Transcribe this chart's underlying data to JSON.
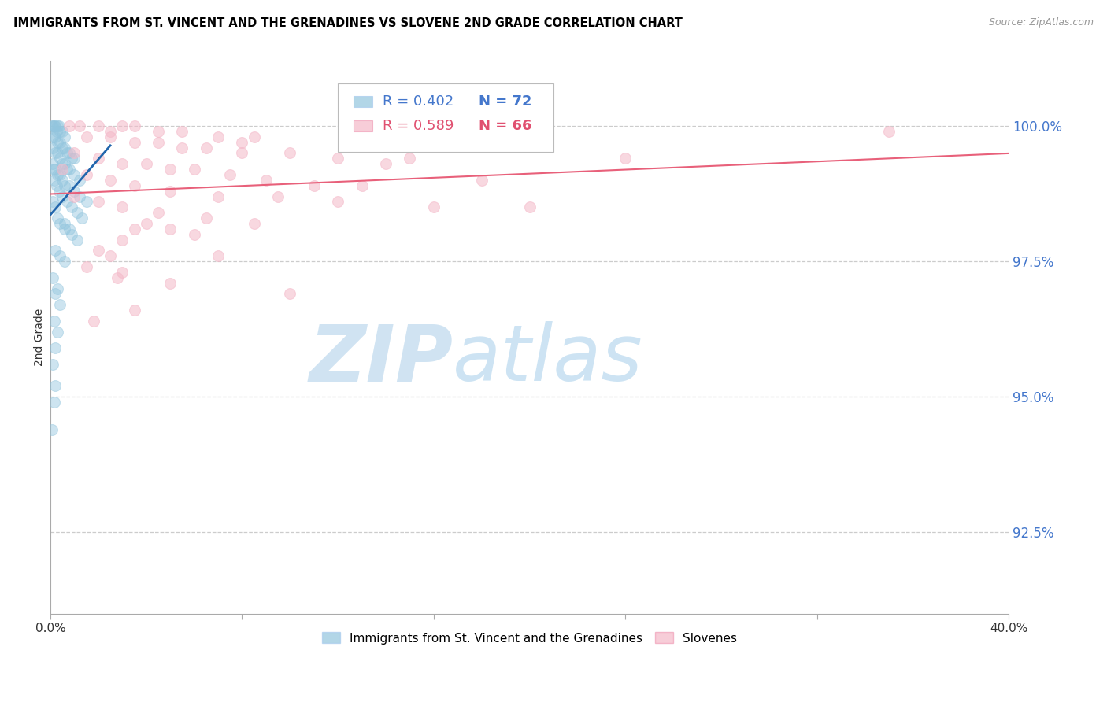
{
  "title": "IMMIGRANTS FROM ST. VINCENT AND THE GRENADINES VS SLOVENE 2ND GRADE CORRELATION CHART",
  "source": "Source: ZipAtlas.com",
  "ylabel": "2nd Grade",
  "legend_blue_R": "R = 0.402",
  "legend_blue_N": "N = 72",
  "legend_pink_R": "R = 0.589",
  "legend_pink_N": "N = 66",
  "legend_label_blue": "Immigrants from St. Vincent and the Grenadines",
  "legend_label_pink": "Slovenes",
  "blue_color": "#92c5de",
  "pink_color": "#f4b8c8",
  "blue_line_color": "#2166ac",
  "pink_line_color": "#e8607a",
  "xlim": [
    0.0,
    40.0
  ],
  "ylim": [
    91.0,
    101.2
  ],
  "right_yticks": [
    92.5,
    95.0,
    97.5,
    100.0
  ],
  "xpercent_ticks": [
    0.0,
    8.0,
    16.0,
    24.0,
    32.0,
    40.0
  ],
  "blue_dots": [
    [
      0.05,
      100.0
    ],
    [
      0.1,
      100.0
    ],
    [
      0.15,
      100.0
    ],
    [
      0.2,
      100.0
    ],
    [
      0.25,
      99.9
    ],
    [
      0.3,
      100.0
    ],
    [
      0.35,
      100.0
    ],
    [
      0.4,
      99.9
    ],
    [
      0.5,
      99.9
    ],
    [
      0.6,
      99.8
    ],
    [
      0.1,
      99.8
    ],
    [
      0.2,
      99.8
    ],
    [
      0.3,
      99.7
    ],
    [
      0.4,
      99.7
    ],
    [
      0.5,
      99.6
    ],
    [
      0.6,
      99.6
    ],
    [
      0.7,
      99.5
    ],
    [
      0.8,
      99.5
    ],
    [
      0.9,
      99.4
    ],
    [
      1.0,
      99.4
    ],
    [
      0.1,
      99.6
    ],
    [
      0.2,
      99.5
    ],
    [
      0.3,
      99.5
    ],
    [
      0.4,
      99.4
    ],
    [
      0.5,
      99.3
    ],
    [
      0.6,
      99.3
    ],
    [
      0.7,
      99.2
    ],
    [
      0.8,
      99.2
    ],
    [
      1.0,
      99.1
    ],
    [
      1.2,
      99.0
    ],
    [
      0.1,
      99.3
    ],
    [
      0.2,
      99.2
    ],
    [
      0.3,
      99.1
    ],
    [
      0.4,
      99.1
    ],
    [
      0.5,
      99.0
    ],
    [
      0.6,
      98.9
    ],
    [
      0.8,
      98.9
    ],
    [
      1.0,
      98.8
    ],
    [
      1.2,
      98.7
    ],
    [
      1.5,
      98.6
    ],
    [
      0.15,
      99.0
    ],
    [
      0.25,
      98.9
    ],
    [
      0.35,
      98.8
    ],
    [
      0.5,
      98.7
    ],
    [
      0.7,
      98.6
    ],
    [
      0.9,
      98.5
    ],
    [
      1.1,
      98.4
    ],
    [
      1.3,
      98.3
    ],
    [
      0.6,
      98.2
    ],
    [
      0.8,
      98.1
    ],
    [
      0.1,
      98.6
    ],
    [
      0.2,
      98.5
    ],
    [
      0.3,
      98.3
    ],
    [
      0.4,
      98.2
    ],
    [
      0.6,
      98.1
    ],
    [
      0.9,
      98.0
    ],
    [
      1.1,
      97.9
    ],
    [
      0.2,
      97.7
    ],
    [
      0.4,
      97.6
    ],
    [
      0.6,
      97.5
    ],
    [
      0.1,
      97.2
    ],
    [
      0.3,
      97.0
    ],
    [
      0.2,
      96.9
    ],
    [
      0.4,
      96.7
    ],
    [
      0.15,
      96.4
    ],
    [
      0.3,
      96.2
    ],
    [
      0.2,
      95.9
    ],
    [
      0.1,
      95.6
    ],
    [
      0.2,
      95.2
    ],
    [
      0.15,
      94.9
    ],
    [
      0.08,
      94.4
    ],
    [
      0.12,
      99.2
    ]
  ],
  "pink_dots": [
    [
      0.8,
      100.0
    ],
    [
      1.2,
      100.0
    ],
    [
      2.0,
      100.0
    ],
    [
      2.5,
      99.9
    ],
    [
      3.0,
      100.0
    ],
    [
      3.5,
      100.0
    ],
    [
      4.5,
      99.9
    ],
    [
      5.5,
      99.9
    ],
    [
      7.0,
      99.8
    ],
    [
      8.5,
      99.8
    ],
    [
      1.5,
      99.8
    ],
    [
      2.5,
      99.8
    ],
    [
      3.5,
      99.7
    ],
    [
      4.5,
      99.7
    ],
    [
      5.5,
      99.6
    ],
    [
      6.5,
      99.6
    ],
    [
      8.0,
      99.5
    ],
    [
      10.0,
      99.5
    ],
    [
      12.0,
      99.4
    ],
    [
      15.0,
      99.4
    ],
    [
      1.0,
      99.5
    ],
    [
      2.0,
      99.4
    ],
    [
      3.0,
      99.3
    ],
    [
      4.0,
      99.3
    ],
    [
      5.0,
      99.2
    ],
    [
      6.0,
      99.2
    ],
    [
      7.5,
      99.1
    ],
    [
      9.0,
      99.0
    ],
    [
      11.0,
      98.9
    ],
    [
      13.0,
      98.9
    ],
    [
      0.5,
      99.2
    ],
    [
      1.5,
      99.1
    ],
    [
      2.5,
      99.0
    ],
    [
      3.5,
      98.9
    ],
    [
      5.0,
      98.8
    ],
    [
      7.0,
      98.7
    ],
    [
      9.5,
      98.7
    ],
    [
      12.0,
      98.6
    ],
    [
      16.0,
      98.5
    ],
    [
      20.0,
      98.5
    ],
    [
      1.0,
      98.7
    ],
    [
      2.0,
      98.6
    ],
    [
      3.0,
      98.5
    ],
    [
      4.5,
      98.4
    ],
    [
      6.5,
      98.3
    ],
    [
      8.5,
      98.2
    ],
    [
      5.0,
      98.1
    ],
    [
      3.0,
      97.9
    ],
    [
      2.0,
      97.7
    ],
    [
      7.0,
      97.6
    ],
    [
      1.5,
      97.4
    ],
    [
      3.0,
      97.3
    ],
    [
      5.0,
      97.1
    ],
    [
      10.0,
      96.9
    ],
    [
      3.5,
      96.6
    ],
    [
      1.8,
      96.4
    ],
    [
      35.0,
      99.9
    ],
    [
      18.0,
      99.0
    ],
    [
      24.0,
      99.4
    ],
    [
      14.0,
      99.3
    ],
    [
      8.0,
      99.7
    ],
    [
      4.0,
      98.2
    ],
    [
      3.5,
      98.1
    ],
    [
      2.5,
      97.6
    ],
    [
      6.0,
      98.0
    ],
    [
      2.8,
      97.2
    ]
  ],
  "watermark_zip_color": "#c8dff0",
  "watermark_atlas_color": "#c8dff0"
}
